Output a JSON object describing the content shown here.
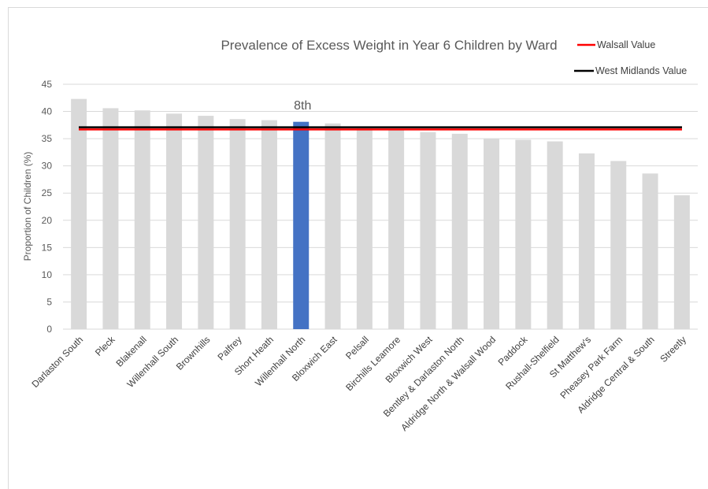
{
  "chart_data": {
    "type": "bar",
    "title": "Prevalence of Excess Weight in Year 6 Children by Ward",
    "ylabel": "Proportion of Children (%)",
    "xlabel": "",
    "ylim": [
      0,
      45
    ],
    "yticks": [
      0,
      5,
      10,
      15,
      20,
      25,
      30,
      35,
      40,
      45
    ],
    "grid": true,
    "legend_position": "top-right",
    "categories": [
      "Darlaston South",
      "Pleck",
      "Blakenall",
      "Willenhall South",
      "Brownhills",
      "Palfrey",
      "Short Heath",
      "Willenhall North",
      "Bloxwich East",
      "Pelsall",
      "Birchills Leamore",
      "Bloxwich West",
      "Bentley & Darlaston North",
      "Aldridge North & Walsall Wood",
      "Paddock",
      "Rushall-Shelfield",
      "St Matthew's",
      "Pheasey Park Farm",
      "Aldridge Central & South",
      "Streetly"
    ],
    "values": [
      42.3,
      40.6,
      40.2,
      39.6,
      39.2,
      38.6,
      38.4,
      38.1,
      37.8,
      36.9,
      36.7,
      36.2,
      35.9,
      35.0,
      34.8,
      34.5,
      32.3,
      30.9,
      28.6,
      24.6
    ],
    "highlight_category": "Willenhall North",
    "bar_color": "#d9d9d9",
    "highlight_color": "#4472c4",
    "reference_lines": [
      {
        "name": "Walsall Value",
        "value": 36.7,
        "color": "#ff0000"
      },
      {
        "name": "West Midlands Value",
        "value": 37.1,
        "color": "#000000"
      }
    ],
    "annotation": {
      "text": "8th",
      "category": "Willenhall North"
    }
  }
}
